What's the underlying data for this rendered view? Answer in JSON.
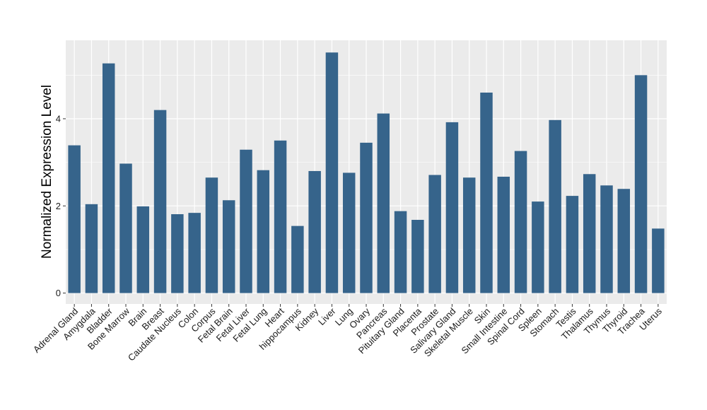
{
  "chart_data": {
    "type": "bar",
    "ylabel": "Normalized Expression Level",
    "xlabel": "",
    "ylim": [
      -0.25,
      5.8
    ],
    "yticks": [
      0,
      2,
      4
    ],
    "grid": true,
    "bar_color": "#36648b",
    "panel_color": "#ebebeb",
    "categories": [
      "Adrenal Gland",
      "Amygdala",
      "Bladder",
      "Bone Marrow",
      "Brain",
      "Breast",
      "Caudate Nucleus",
      "Colon",
      "Corpus",
      "Fetal Brain",
      "Fetal Liver",
      "Fetal Lung",
      "Heart",
      "hippocampus",
      "Kidney",
      "Liver",
      "Lung",
      "Ovary",
      "Pancreas",
      "Pituitary Gland",
      "Placenta",
      "Prostate",
      "Salivary Gland",
      "Skeletal Muscle",
      "Skin",
      "Small Intestine",
      "Spinal Cord",
      "Spleen",
      "Stomach",
      "Testis",
      "Thalamus",
      "Thymus",
      "Thyroid",
      "Trachea",
      "Uterus"
    ],
    "values": [
      3.39,
      2.04,
      5.27,
      2.97,
      1.99,
      4.2,
      1.81,
      1.84,
      2.65,
      2.13,
      3.29,
      2.82,
      3.5,
      1.54,
      2.8,
      5.52,
      2.76,
      3.45,
      4.12,
      1.88,
      1.68,
      2.71,
      3.92,
      2.65,
      4.6,
      2.67,
      3.26,
      2.1,
      3.97,
      2.23,
      2.73,
      2.47,
      2.39,
      5.0,
      1.48
    ]
  }
}
